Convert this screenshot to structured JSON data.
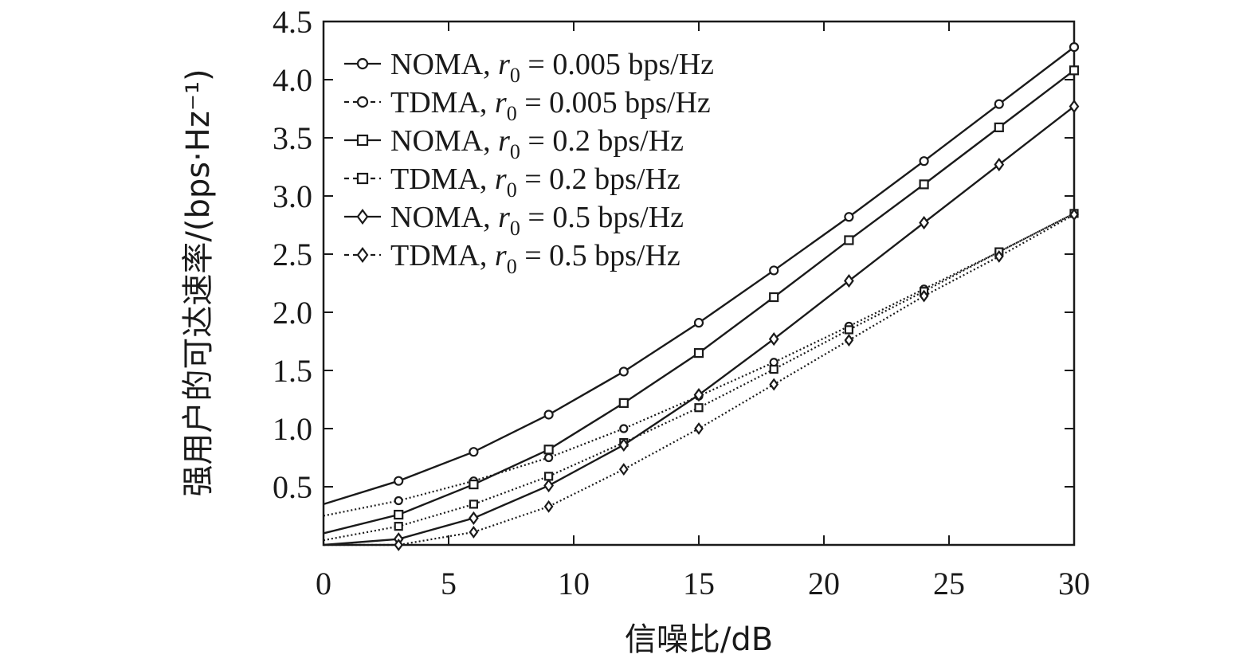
{
  "chart_data": {
    "type": "line",
    "title": "",
    "xlabel": "信噪比/dB",
    "ylabel": "强用户的可达速率/(bps·Hz⁻¹)",
    "xlim": [
      0,
      30
    ],
    "ylim": [
      0,
      4.5
    ],
    "grid": false,
    "legend_position": "top-left",
    "x": [
      0,
      3,
      6,
      9,
      12,
      15,
      18,
      21,
      24,
      27,
      30
    ],
    "x_ticks": [
      "0",
      "5",
      "10",
      "15",
      "20",
      "25",
      "30"
    ],
    "y_ticks": [
      "0.5",
      "1.0",
      "1.5",
      "2.0",
      "2.5",
      "3.0",
      "3.5",
      "4.0",
      "4.5"
    ],
    "series": [
      {
        "name": "NOMA, r0 = 0.005 bps/Hz",
        "prefix": "NOMA, ",
        "r": "r",
        "sub": "0",
        "suffix": " = 0.005 bps/Hz",
        "marker": "circle",
        "style": "solid",
        "values": [
          0.35,
          0.55,
          0.8,
          1.12,
          1.49,
          1.91,
          2.36,
          2.82,
          3.3,
          3.79,
          4.28
        ]
      },
      {
        "name": "TDMA, r0 = 0.005 bps/Hz",
        "prefix": "TDMA, ",
        "r": "r",
        "sub": "0",
        "suffix": " = 0.005 bps/Hz",
        "marker": "circle",
        "style": "dotted",
        "values": [
          0.25,
          0.38,
          0.55,
          0.75,
          1.0,
          1.28,
          1.57,
          1.88,
          2.2,
          2.52,
          2.85
        ]
      },
      {
        "name": "NOMA, r0 = 0.2 bps/Hz",
        "prefix": "NOMA, ",
        "r": "r",
        "sub": "0",
        "suffix": " = 0.2 bps/Hz",
        "marker": "square",
        "style": "solid",
        "values": [
          0.1,
          0.26,
          0.52,
          0.82,
          1.22,
          1.65,
          2.13,
          2.62,
          3.1,
          3.59,
          4.08
        ]
      },
      {
        "name": "TDMA, r0 = 0.2 bps/Hz",
        "prefix": "TDMA, ",
        "r": "r",
        "sub": "0",
        "suffix": " = 0.2 bps/Hz",
        "marker": "square",
        "style": "dotted",
        "values": [
          0.04,
          0.16,
          0.35,
          0.59,
          0.88,
          1.18,
          1.51,
          1.85,
          2.18,
          2.52,
          2.85
        ]
      },
      {
        "name": "NOMA, r0 = 0.5 bps/Hz",
        "prefix": "NOMA, ",
        "r": "r",
        "sub": "0",
        "suffix": " = 0.5 bps/Hz",
        "marker": "diamond",
        "style": "solid",
        "values": [
          0.0,
          0.05,
          0.23,
          0.51,
          0.86,
          1.29,
          1.77,
          2.27,
          2.77,
          3.27,
          3.77
        ]
      },
      {
        "name": "TDMA, r0 = 0.5 bps/Hz",
        "prefix": "TDMA, ",
        "r": "r",
        "sub": "0",
        "suffix": " = 0.5 bps/Hz",
        "marker": "diamond",
        "style": "dotted",
        "values": [
          0.0,
          0.0,
          0.11,
          0.33,
          0.65,
          1.0,
          1.38,
          1.76,
          2.14,
          2.48,
          2.84
        ]
      }
    ]
  }
}
